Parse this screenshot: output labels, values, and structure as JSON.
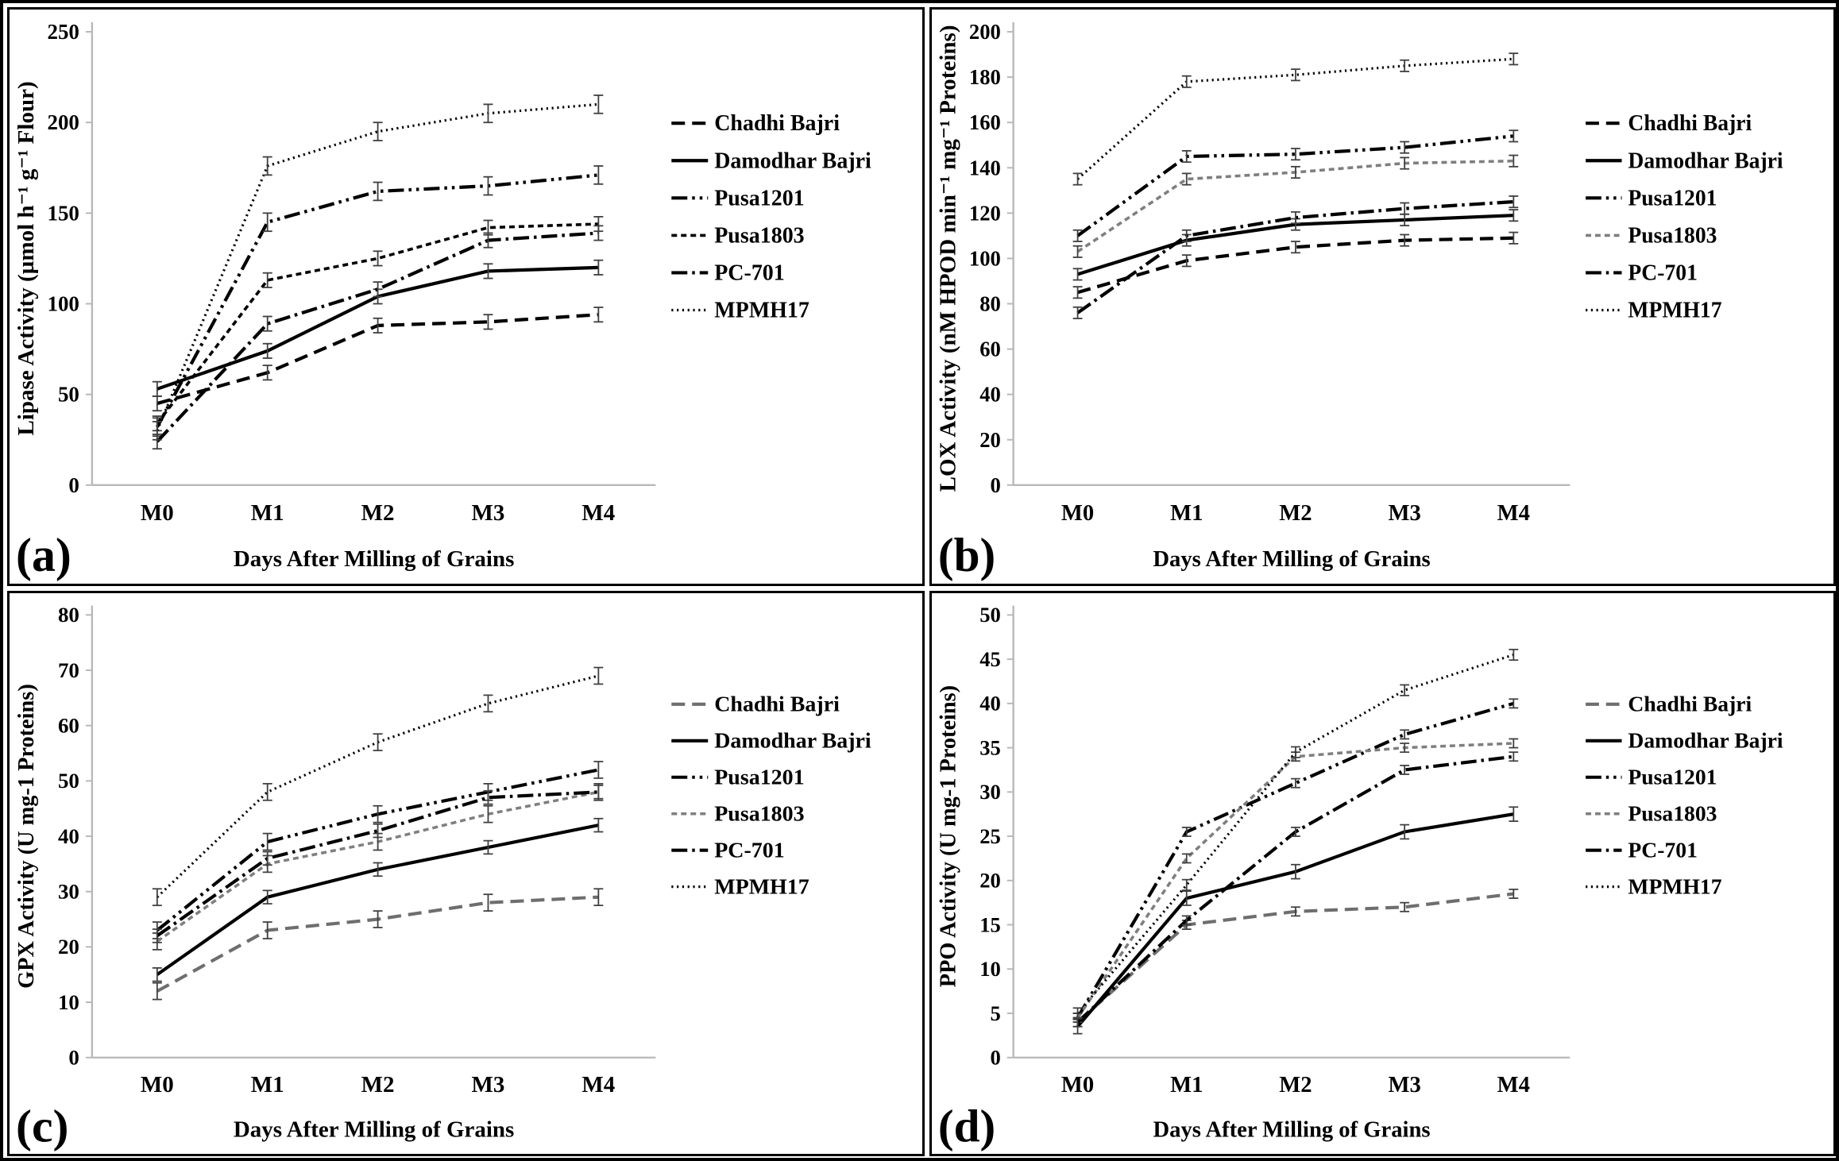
{
  "figure_title": "",
  "x_axis_label": "Days After Milling of Grains",
  "categories": [
    "M0",
    "M1",
    "M2",
    "M3",
    "M4"
  ],
  "legend_labels": [
    "Chadhi Bajri",
    "Damodhar Bajri",
    "Pusa1201",
    "Pusa1803",
    "PC-701",
    "MPMH17"
  ],
  "colors": {
    "black": "#000000",
    "gray_line": "#6e6e6e",
    "light_gray_line": "#7f7f7f",
    "axis_gray": "#b8b8b8",
    "error_bar": "#3f3f3f"
  },
  "chart_data": [
    {
      "type": "line",
      "panel_letter": "(a)",
      "title": "",
      "ylabel": "Lipase Activity (µmol h⁻¹ g⁻¹ Flour)",
      "xlabel": "Days After Milling of Grains",
      "categories": [
        "M0",
        "M1",
        "M2",
        "M3",
        "M4"
      ],
      "ylim": [
        0,
        250
      ],
      "ystep": 50,
      "grid": false,
      "legend_position": "right",
      "series": [
        {
          "name": "Chadhi Bajri",
          "style": "longdash",
          "color": "#000000",
          "values": [
            45,
            62,
            88,
            90,
            94
          ],
          "error": 4
        },
        {
          "name": "Damodhar Bajri",
          "style": "solid",
          "color": "#000000",
          "values": [
            53,
            74,
            104,
            118,
            120
          ],
          "error": 4
        },
        {
          "name": "Pusa1201",
          "style": "dashdotdot",
          "color": "#000000",
          "values": [
            32,
            145,
            162,
            165,
            171
          ],
          "error": 5
        },
        {
          "name": "Pusa1803",
          "style": "smalldash",
          "color": "#000000",
          "values": [
            34,
            113,
            125,
            142,
            144
          ],
          "error": 4
        },
        {
          "name": "PC-701",
          "style": "dashdot",
          "color": "#000000",
          "values": [
            24,
            89,
            108,
            135,
            139
          ],
          "error": 4
        },
        {
          "name": "MPMH17",
          "style": "dotted",
          "color": "#000000",
          "values": [
            30,
            176,
            195,
            205,
            210
          ],
          "error": 5
        }
      ]
    },
    {
      "type": "line",
      "panel_letter": "(b)",
      "title": "",
      "ylabel": "LOX Activity (nM HPOD min⁻¹ mg⁻¹ Proteins)",
      "xlabel": "Days After Milling of Grains",
      "categories": [
        "M0",
        "M1",
        "M2",
        "M3",
        "M4"
      ],
      "ylim": [
        0,
        200
      ],
      "ystep": 20,
      "grid": false,
      "legend_position": "right",
      "series": [
        {
          "name": "Chadhi Bajri",
          "style": "longdash",
          "color": "#000000",
          "values": [
            85,
            99,
            105,
            108,
            109
          ],
          "error": 2.5
        },
        {
          "name": "Damodhar Bajri",
          "style": "solid",
          "color": "#000000",
          "values": [
            93,
            108,
            115,
            117,
            119
          ],
          "error": 2.5
        },
        {
          "name": "Pusa1201",
          "style": "dashdotdot",
          "color": "#000000",
          "values": [
            110,
            145,
            146,
            149,
            154
          ],
          "error": 2.5
        },
        {
          "name": "Pusa1803",
          "style": "smalldash",
          "color": "#7f7f7f",
          "values": [
            103,
            135,
            138,
            142,
            143
          ],
          "error": 2.5
        },
        {
          "name": "PC-701",
          "style": "dashdot",
          "color": "#000000",
          "values": [
            76,
            110,
            118,
            122,
            125
          ],
          "error": 2.5
        },
        {
          "name": "MPMH17",
          "style": "dotted",
          "color": "#000000",
          "values": [
            135,
            178,
            181,
            185,
            188
          ],
          "error": 2.5
        }
      ]
    },
    {
      "type": "line",
      "panel_letter": "(c)",
      "title": "",
      "ylabel": "GPX Activity (U mg-1 Proteins)",
      "xlabel": "Days After Milling of Grains",
      "categories": [
        "M0",
        "M1",
        "M2",
        "M3",
        "M4"
      ],
      "ylim": [
        0,
        80
      ],
      "ystep": 10,
      "grid": false,
      "legend_position": "right",
      "series": [
        {
          "name": "Chadhi Bajri",
          "style": "longdash",
          "color": "#6e6e6e",
          "values": [
            12,
            23,
            25,
            28,
            29
          ],
          "error": 1.5
        },
        {
          "name": "Damodhar Bajri",
          "style": "solid",
          "color": "#000000",
          "values": [
            15,
            29,
            34,
            38,
            42
          ],
          "error": 1.2
        },
        {
          "name": "Pusa1201",
          "style": "dashdotdot",
          "color": "#000000",
          "values": [
            23,
            39,
            44,
            48,
            52
          ],
          "error": 1.5
        },
        {
          "name": "Pusa1803",
          "style": "smalldash",
          "color": "#7f7f7f",
          "values": [
            21,
            35,
            39,
            44,
            48
          ],
          "error": 1.5
        },
        {
          "name": "PC-701",
          "style": "dashdot",
          "color": "#000000",
          "values": [
            22,
            36,
            41,
            47,
            48
          ],
          "error": 1.2
        },
        {
          "name": "MPMH17",
          "style": "dotted",
          "color": "#000000",
          "values": [
            29,
            48,
            57,
            64,
            69
          ],
          "error": 1.5
        }
      ]
    },
    {
      "type": "line",
      "panel_letter": "(d)",
      "title": "",
      "ylabel": "PPO Activity (U mg-1 Proteins)",
      "xlabel": "Days After Milling of Grains",
      "categories": [
        "M0",
        "M1",
        "M2",
        "M3",
        "M4"
      ],
      "ylim": [
        0,
        50
      ],
      "ystep": 5,
      "grid": false,
      "legend_position": "right",
      "series": [
        {
          "name": "Chadhi Bajri",
          "style": "longdash",
          "color": "#6e6e6e",
          "values": [
            4,
            15,
            16.5,
            17,
            18.5
          ],
          "error": 0.5
        },
        {
          "name": "Damodhar Bajri",
          "style": "solid",
          "color": "#000000",
          "values": [
            3.5,
            18,
            21,
            25.5,
            27.5
          ],
          "error": 0.8
        },
        {
          "name": "Pusa1201",
          "style": "dashdotdot",
          "color": "#000000",
          "values": [
            4.5,
            25.5,
            31,
            36.5,
            40
          ],
          "error": 0.5
        },
        {
          "name": "Pusa1803",
          "style": "smalldash",
          "color": "#7f7f7f",
          "values": [
            4.5,
            22.5,
            34,
            35,
            35.5
          ],
          "error": 0.5
        },
        {
          "name": "PC-701",
          "style": "dashdot",
          "color": "#000000",
          "values": [
            4,
            15.5,
            25.5,
            32.5,
            34
          ],
          "error": 0.5
        },
        {
          "name": "MPMH17",
          "style": "dotted",
          "color": "#000000",
          "values": [
            5,
            19.5,
            34.5,
            41.5,
            45.5
          ],
          "error": 0.6
        }
      ]
    }
  ]
}
